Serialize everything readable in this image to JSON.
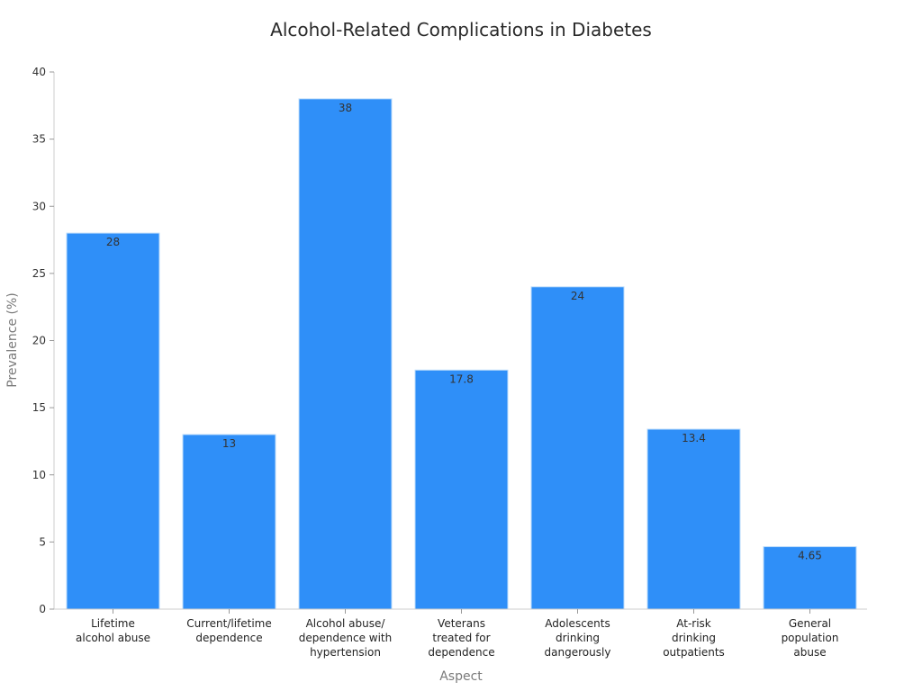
{
  "chart_data": {
    "type": "bar",
    "title": "Alcohol-Related Complications in Diabetes",
    "xlabel": "Aspect",
    "ylabel": "Prevalence (%)",
    "ylim": [
      0,
      40
    ],
    "yticks": [
      0,
      5,
      10,
      15,
      20,
      25,
      30,
      35,
      40
    ],
    "categories": [
      [
        "Lifetime",
        "alcohol abuse"
      ],
      [
        "Current/lifetime",
        "dependence"
      ],
      [
        "Alcohol abuse/",
        "dependence with",
        "hypertension"
      ],
      [
        "Veterans",
        "treated for",
        "dependence"
      ],
      [
        "Adolescents",
        "drinking",
        "dangerously"
      ],
      [
        "At-risk",
        "drinking",
        "outpatients"
      ],
      [
        "General",
        "population",
        "abuse"
      ]
    ],
    "values": [
      28,
      13,
      38,
      17.8,
      24,
      13.4,
      4.65
    ],
    "value_labels": [
      "28",
      "13",
      "38",
      "17.8",
      "24",
      "13.4",
      "4.65"
    ],
    "bar_color": "#2f8ff8",
    "grid": false,
    "legend": "none"
  }
}
